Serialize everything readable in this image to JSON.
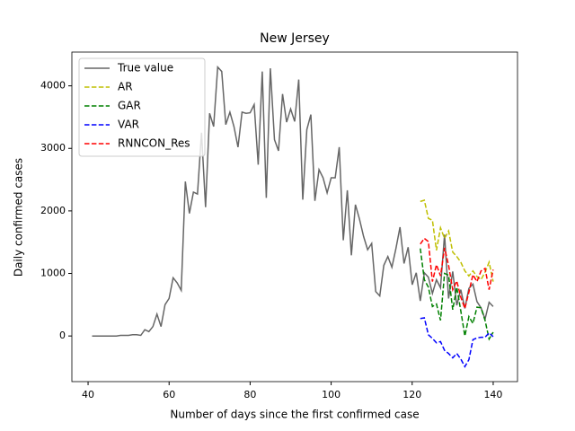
{
  "chart_data": {
    "type": "line",
    "title": "New Jersey",
    "x_label": "Number of days since the first confirmed case",
    "y_label": "Daily confirmed cases",
    "xlim": [
      36,
      146
    ],
    "ylim": [
      -730,
      4540
    ],
    "xticks": [
      40,
      60,
      80,
      100,
      120,
      140
    ],
    "yticks": [
      0,
      1000,
      2000,
      3000,
      4000
    ],
    "legend": "upper left",
    "series": [
      {
        "name": "True value",
        "color": "#666666",
        "dash": false,
        "x": [
          41,
          42,
          43,
          44,
          45,
          46,
          47,
          48,
          49,
          50,
          51,
          52,
          53,
          54,
          55,
          56,
          57,
          58,
          59,
          60,
          61,
          62,
          63,
          64,
          65,
          66,
          67,
          68,
          69,
          70,
          71,
          72,
          73,
          74,
          75,
          76,
          77,
          78,
          79,
          80,
          81,
          82,
          83,
          84,
          85,
          86,
          87,
          88,
          89,
          90,
          91,
          92,
          93,
          94,
          95,
          96,
          97,
          98,
          99,
          100,
          101,
          102,
          103,
          104,
          105,
          106,
          107,
          108,
          109,
          110,
          111,
          112,
          113,
          114,
          115,
          116,
          117,
          118,
          119,
          120,
          121,
          122,
          123,
          124,
          125,
          126,
          127,
          128,
          129,
          130,
          131,
          132,
          133,
          134,
          135,
          136,
          137,
          138,
          139,
          140
        ],
        "values": [
          0,
          0,
          0,
          0,
          0,
          0,
          0,
          10,
          10,
          10,
          20,
          20,
          10,
          100,
          70,
          150,
          350,
          150,
          500,
          600,
          930,
          850,
          730,
          2470,
          1960,
          2300,
          2270,
          3250,
          2060,
          3560,
          3350,
          4300,
          4230,
          3380,
          3580,
          3350,
          3020,
          3580,
          3560,
          3570,
          3700,
          2740,
          4230,
          2210,
          4280,
          3140,
          2960,
          3870,
          3420,
          3630,
          3430,
          4100,
          2180,
          3300,
          3540,
          2160,
          2660,
          2530,
          2290,
          2530,
          2530,
          3020,
          1530,
          2330,
          1290,
          2100,
          1870,
          1590,
          1380,
          1480,
          710,
          640,
          1130,
          1270,
          1100,
          1400,
          1740,
          1160,
          1420,
          820,
          1010,
          560,
          1010,
          940,
          680,
          900,
          770,
          1620,
          600,
          1030,
          490,
          740,
          440,
          760,
          830,
          550,
          450,
          270,
          540,
          470
        ]
      },
      {
        "name": "AR",
        "color": "#bfbf00",
        "dash": true,
        "x": [
          122,
          123,
          124,
          125,
          126,
          127,
          128,
          129,
          130,
          131,
          132,
          133,
          134,
          135,
          136,
          137,
          138,
          139,
          140
        ],
        "values": [
          2150,
          2170,
          1880,
          1850,
          1370,
          1730,
          1560,
          1680,
          1340,
          1270,
          1180,
          1040,
          960,
          1040,
          950,
          900,
          1020,
          1180,
          870
        ]
      },
      {
        "name": "GAR",
        "color": "#008000",
        "dash": true,
        "x": [
          122,
          123,
          124,
          125,
          126,
          127,
          128,
          129,
          130,
          131,
          132,
          133,
          134,
          135,
          136,
          137,
          138,
          139,
          140
        ],
        "values": [
          1400,
          900,
          780,
          470,
          510,
          250,
          1000,
          970,
          420,
          780,
          400,
          0,
          310,
          200,
          460,
          450,
          250,
          -50,
          60
        ]
      },
      {
        "name": "VAR",
        "color": "#0000ff",
        "dash": true,
        "x": [
          122,
          123,
          124,
          125,
          126,
          127,
          128,
          129,
          130,
          131,
          132,
          133,
          134,
          135,
          136,
          137,
          138,
          139,
          140
        ],
        "values": [
          280,
          290,
          20,
          -40,
          -110,
          -90,
          -230,
          -280,
          -350,
          -280,
          -370,
          -490,
          -380,
          -60,
          -30,
          -20,
          -20,
          50,
          -10
        ]
      },
      {
        "name": "RNNCON_Res",
        "color": "#ff0000",
        "dash": true,
        "x": [
          122,
          123,
          124,
          125,
          126,
          127,
          128,
          129,
          130,
          131,
          132,
          133,
          134,
          135,
          136,
          137,
          138,
          139,
          140
        ],
        "values": [
          1470,
          1560,
          1510,
          870,
          1140,
          960,
          1410,
          1130,
          740,
          880,
          620,
          440,
          700,
          980,
          870,
          1040,
          1080,
          740,
          1060
        ]
      }
    ]
  }
}
